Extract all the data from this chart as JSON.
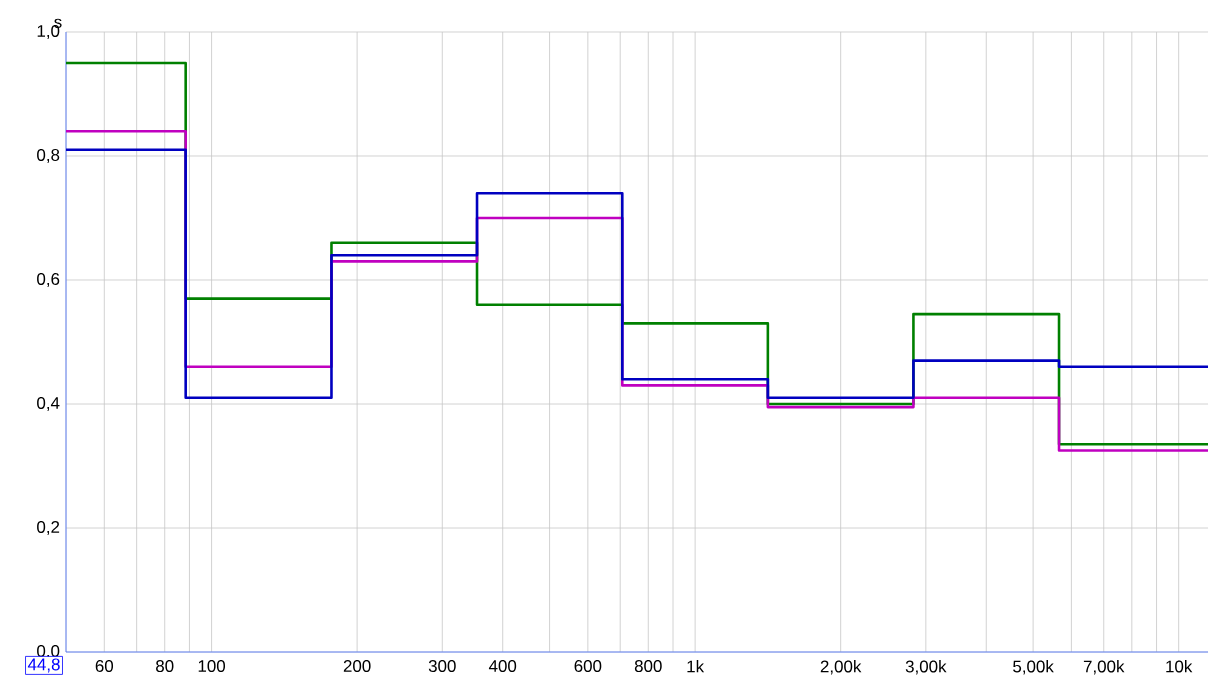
{
  "chart_data": {
    "type": "step",
    "ylabel": "s",
    "log": "x",
    "grid": true,
    "line_style": "solid",
    "xlim": [
      50,
      11500
    ],
    "ylim": [
      0,
      1.0
    ],
    "xticks": [
      {
        "value": 50,
        "label": null
      },
      60,
      {
        "value": 70,
        "label": null
      },
      80,
      {
        "value": 90,
        "label": null
      },
      100,
      200,
      300,
      400,
      {
        "value": 500,
        "label": null
      },
      600,
      {
        "value": 700,
        "label": null
      },
      800,
      {
        "value": 900,
        "label": null
      },
      {
        "value": 1000,
        "label": "1k"
      },
      {
        "value": 2000,
        "label": "2,00k"
      },
      {
        "value": 3000,
        "label": "3,00k"
      },
      {
        "value": 4000,
        "label": null
      },
      {
        "value": 5000,
        "label": "5,00k"
      },
      {
        "value": 6000,
        "label": null
      },
      {
        "value": 7000,
        "label": "7,00k"
      },
      {
        "value": 8000,
        "label": null
      },
      {
        "value": 9000,
        "label": null
      },
      {
        "value": 10000,
        "label": "10k"
      }
    ],
    "yticks": [
      {
        "value": 0,
        "label": "0,0"
      },
      {
        "value": 0.2,
        "label": "0,2"
      },
      {
        "value": 0.4,
        "label": "0,4"
      },
      {
        "value": 0.6,
        "label": "0,6"
      },
      {
        "value": 0.8,
        "label": "0,8"
      },
      {
        "value": 1.0,
        "label": "1,0"
      }
    ],
    "x": [
      50,
      88.4,
      177,
      354,
      707,
      1414,
      2828,
      5657,
      11500
    ],
    "series": [
      {
        "color": "#008000",
        "values": [
          0.95,
          0.57,
          0.66,
          0.56,
          0.53,
          0.4,
          0.545,
          0.335,
          0.335
        ]
      },
      {
        "color": "#c000c0",
        "values": [
          0.84,
          0.46,
          0.63,
          0.7,
          0.43,
          0.395,
          0.41,
          0.325,
          0.325
        ]
      },
      {
        "color": "#0000c0",
        "values": [
          0.81,
          0.41,
          0.64,
          0.74,
          0.44,
          0.41,
          0.47,
          0.46,
          0.46
        ]
      }
    ],
    "annotations": [
      "44,8"
    ]
  }
}
